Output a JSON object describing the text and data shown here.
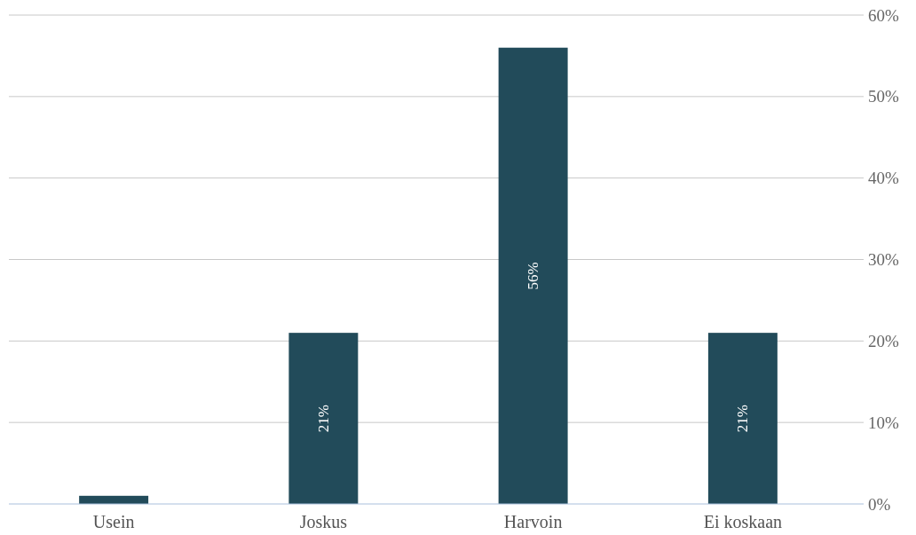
{
  "chart_data": {
    "type": "bar",
    "categories": [
      "Usein",
      "Joskus",
      "Harvoin",
      "Ei koskaan"
    ],
    "values": [
      1,
      21,
      56,
      21
    ],
    "color": "#224b5a",
    "value_labels": [
      null,
      "21%",
      "56%",
      "21%"
    ],
    "ylim": [
      0,
      60
    ],
    "yticks": [
      {
        "value": 0,
        "label": "0%"
      },
      {
        "value": 10,
        "label": "10%"
      },
      {
        "value": 20,
        "label": "20%"
      },
      {
        "value": 30,
        "label": "30%"
      },
      {
        "value": 40,
        "label": "40%"
      },
      {
        "value": 50,
        "label": "50%"
      },
      {
        "value": 60,
        "label": "60%"
      }
    ],
    "grid": "y"
  }
}
